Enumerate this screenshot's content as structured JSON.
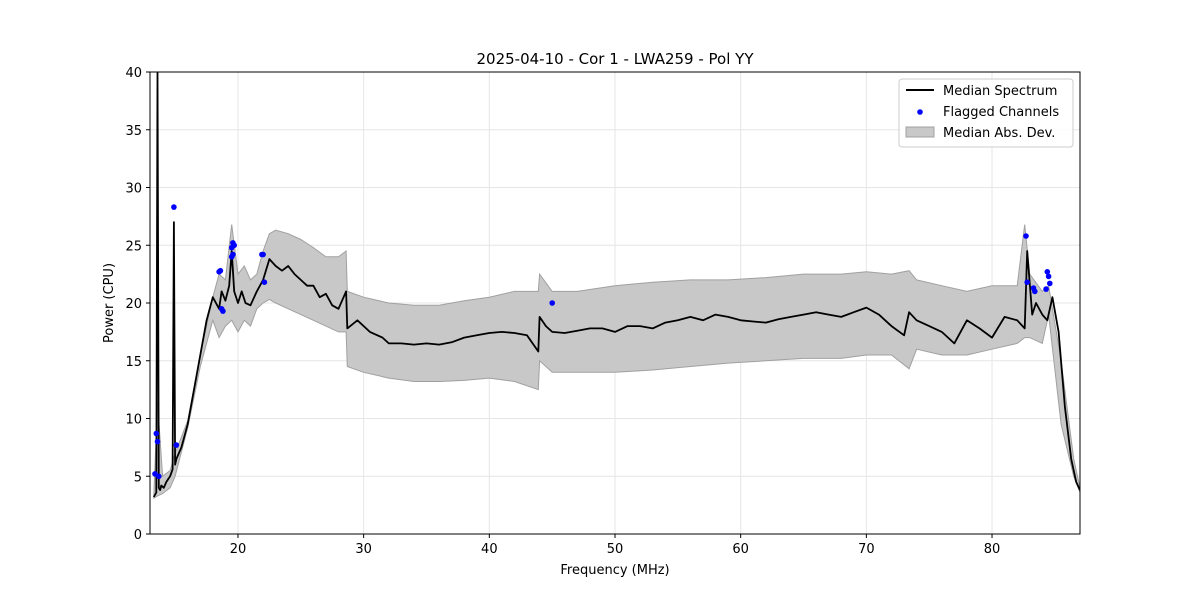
{
  "chart_data": {
    "type": "line",
    "title": "2025-04-10 - Cor 1 - LWA259 - Pol YY",
    "xlabel": "Frequency (MHz)",
    "ylabel": "Power (CPU)",
    "xlim": [
      13,
      87
    ],
    "ylim": [
      0,
      40
    ],
    "xticks": [
      20,
      30,
      40,
      50,
      60,
      70,
      80
    ],
    "yticks": [
      0,
      5,
      10,
      15,
      20,
      25,
      30,
      35,
      40
    ],
    "grid": true,
    "legend_position": "top-right",
    "legend": [
      "Median Spectrum",
      "Flagged Channels",
      "Median Abs. Dev."
    ],
    "colors": {
      "median": "#000000",
      "flagged": "#0000ff",
      "mad": "#c8c8c8",
      "mad_edge": "#a0a0a0"
    },
    "series": [
      {
        "name": "Median Spectrum",
        "kind": "line",
        "x": [
          13.3,
          13.5,
          13.6,
          13.7,
          13.8,
          13.9,
          14.1,
          14.3,
          14.6,
          14.8,
          14.9,
          15.0,
          15.1,
          15.5,
          16.0,
          16.5,
          17.0,
          17.5,
          18.0,
          18.5,
          18.7,
          19.0,
          19.3,
          19.5,
          19.7,
          20.0,
          20.3,
          20.6,
          21.0,
          21.5,
          22.0,
          22.5,
          23.0,
          23.5,
          24.0,
          24.5,
          25.0,
          25.5,
          26.0,
          26.5,
          27.0,
          27.5,
          28.0,
          28.6,
          28.7,
          29.5,
          30.5,
          31.5,
          32.0,
          33.0,
          34.0,
          35.0,
          36.0,
          37.0,
          38.0,
          39.0,
          40.0,
          41.0,
          42.0,
          43.0,
          43.9,
          44.0,
          44.5,
          45.0,
          46.0,
          47.0,
          48.0,
          49.0,
          50.0,
          51.0,
          52.0,
          53.0,
          54.0,
          55.0,
          56.0,
          57.0,
          58.0,
          59.0,
          60.0,
          61.0,
          62.0,
          63.0,
          64.0,
          65.0,
          66.0,
          67.0,
          68.0,
          69.0,
          70.0,
          71.0,
          72.0,
          73.0,
          73.4,
          74.0,
          75.0,
          76.0,
          77.0,
          78.0,
          79.0,
          80.0,
          81.0,
          82.0,
          82.6,
          82.8,
          83.2,
          83.5,
          84.0,
          84.4,
          84.8,
          85.3,
          85.8,
          86.3,
          86.7,
          87.0
        ],
        "y": [
          3.2,
          3.6,
          40.0,
          4.0,
          3.8,
          4.2,
          4.0,
          4.5,
          5.0,
          5.6,
          27.0,
          6.0,
          6.5,
          7.5,
          9.5,
          12.5,
          15.5,
          18.5,
          20.5,
          19.5,
          21.0,
          20.2,
          21.5,
          24.5,
          21.0,
          20.0,
          21.0,
          20.0,
          19.8,
          21.0,
          22.0,
          23.8,
          23.2,
          22.8,
          23.2,
          22.5,
          22.0,
          21.5,
          21.5,
          20.5,
          20.8,
          19.8,
          19.5,
          21.0,
          17.8,
          18.5,
          17.5,
          17.0,
          16.5,
          16.5,
          16.4,
          16.5,
          16.4,
          16.6,
          17.0,
          17.2,
          17.4,
          17.5,
          17.4,
          17.2,
          15.8,
          18.8,
          18.0,
          17.5,
          17.4,
          17.6,
          17.8,
          17.8,
          17.5,
          18.0,
          18.0,
          17.8,
          18.3,
          18.5,
          18.8,
          18.5,
          19.0,
          18.8,
          18.5,
          18.4,
          18.3,
          18.6,
          18.8,
          19.0,
          19.2,
          19.0,
          18.8,
          19.2,
          19.6,
          19.0,
          18.0,
          17.2,
          19.2,
          18.5,
          18.0,
          17.5,
          16.5,
          18.5,
          17.8,
          17.0,
          18.8,
          18.5,
          17.8,
          24.5,
          19.0,
          20.0,
          19.0,
          18.5,
          20.5,
          17.5,
          11.0,
          6.5,
          4.5,
          3.8
        ]
      },
      {
        "name": "Median Abs. Dev.",
        "kind": "band",
        "x": [
          13.3,
          13.6,
          14.0,
          14.6,
          15.0,
          16.0,
          17.0,
          18.0,
          18.5,
          19.0,
          19.5,
          20.0,
          20.5,
          21.0,
          21.5,
          22.0,
          22.5,
          23.0,
          24.0,
          25.0,
          26.0,
          27.0,
          28.0,
          28.6,
          28.7,
          30.0,
          32.0,
          34.0,
          36.0,
          38.0,
          40.0,
          42.0,
          43.9,
          44.0,
          45.0,
          47.0,
          50.0,
          53.0,
          56.0,
          59.0,
          62.0,
          65.0,
          68.0,
          70.0,
          72.0,
          73.4,
          74.0,
          76.0,
          78.0,
          80.0,
          82.0,
          82.6,
          83.0,
          84.0,
          84.5,
          85.5,
          86.5,
          87.0
        ],
        "upper": [
          3.3,
          11.5,
          5.0,
          5.5,
          7.0,
          9.8,
          15.5,
          20.5,
          22.5,
          22.0,
          26.8,
          22.5,
          23.2,
          22.0,
          22.5,
          24.5,
          26.0,
          26.3,
          26.0,
          25.5,
          24.8,
          24.0,
          24.0,
          24.5,
          21.0,
          20.5,
          20.0,
          19.8,
          19.8,
          20.2,
          20.5,
          21.0,
          21.0,
          22.5,
          21.0,
          21.0,
          21.5,
          21.8,
          22.0,
          22.0,
          22.2,
          22.5,
          22.5,
          22.7,
          22.5,
          22.8,
          22.0,
          21.5,
          21.0,
          21.5,
          21.5,
          26.8,
          22.5,
          21.0,
          21.5,
          15.0,
          6.5,
          4.0
        ],
        "lower": [
          3.1,
          3.3,
          3.5,
          4.0,
          5.0,
          9.2,
          14.5,
          18.5,
          17.0,
          18.0,
          18.5,
          17.5,
          18.5,
          18.0,
          19.5,
          20.0,
          20.3,
          20.0,
          19.5,
          19.0,
          18.5,
          18.0,
          17.5,
          17.5,
          14.5,
          14.0,
          13.5,
          13.2,
          13.2,
          13.3,
          13.5,
          13.2,
          12.5,
          15.0,
          14.0,
          14.0,
          14.0,
          14.2,
          14.5,
          14.8,
          15.0,
          15.2,
          15.2,
          15.5,
          15.5,
          14.3,
          16.0,
          15.5,
          15.5,
          16.0,
          16.5,
          17.0,
          17.0,
          16.5,
          19.0,
          9.5,
          5.0,
          3.6
        ]
      },
      {
        "name": "Flagged Channels",
        "kind": "scatter",
        "x": [
          13.4,
          13.5,
          13.6,
          13.7,
          14.9,
          15.1,
          18.5,
          18.6,
          18.7,
          18.8,
          19.5,
          19.6,
          19.5,
          19.6,
          19.7,
          21.9,
          22.0,
          22.1,
          45.0,
          82.7,
          82.8,
          83.3,
          83.4,
          84.3,
          84.4,
          84.5,
          84.6
        ],
        "y": [
          5.2,
          8.7,
          8.0,
          5.0,
          28.3,
          7.7,
          22.7,
          22.8,
          19.5,
          19.3,
          24.0,
          24.2,
          24.8,
          25.2,
          25.0,
          24.2,
          24.2,
          21.8,
          20.0,
          25.8,
          21.8,
          21.3,
          21.0,
          21.2,
          22.7,
          22.3,
          21.7
        ]
      }
    ]
  }
}
